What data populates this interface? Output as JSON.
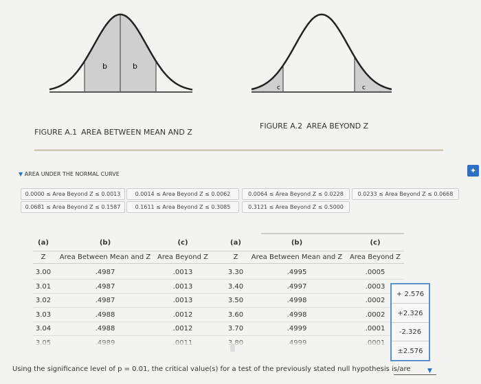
{
  "figures": [
    {
      "label": "FIGURE A.1",
      "caption": "AREA BETWEEN MEAN AND Z",
      "region_labels": [
        "b",
        "b"
      ]
    },
    {
      "label": "FIGURE A.2",
      "caption": "AREA BEYOND Z",
      "region_labels": [
        "c",
        "c"
      ]
    }
  ],
  "section": {
    "title": "AREA UNDER THE NORMAL CURVE",
    "buttons": [
      "0.0000 ≤ Area Beyond Z ≤ 0.0013",
      "0.0014 ≤ Area Beyond Z ≤ 0.0062",
      "0.0064 ≤ Area Beyond Z ≤ 0.0228",
      "0.0233 ≤ Area Beyond Z ≤ 0.0668",
      "0.0681 ≤ Area Beyond Z ≤ 0.1587",
      "0.1611 ≤ Area Beyond Z ≤ 0.3085",
      "0.3121 ≤ Area Beyond Z ≤ 0.5000"
    ]
  },
  "table": {
    "group_headers": [
      "(a)",
      "(b)",
      "(c)",
      "(a)",
      "(b)",
      "(c)"
    ],
    "headers": [
      "Z",
      "Area Between Mean and Z",
      "Area Beyond Z",
      "Z",
      "Area Between Mean and Z",
      "Area Beyond Z"
    ],
    "rows": [
      [
        "3.00",
        ".4987",
        ".0013",
        "3.30",
        ".4995",
        ".0005"
      ],
      [
        "3.01",
        ".4987",
        ".0013",
        "3.40",
        ".4997",
        ".0003"
      ],
      [
        "3.02",
        ".4987",
        ".0013",
        "3.50",
        ".4998",
        ".0002"
      ],
      [
        "3.03",
        ".4988",
        ".0012",
        "3.60",
        ".4998",
        ".0002"
      ],
      [
        "3.04",
        ".4988",
        ".0012",
        "3.70",
        ".4999",
        ".0001"
      ],
      [
        "3.05",
        ".4989",
        ".0011",
        "3.80",
        ".4999",
        ".0001"
      ]
    ]
  },
  "question": {
    "text": "Using the significance level of p = 0.01, the critical value(s) for a test of the previously stated null hypothesis is/are",
    "options": [
      "+ 2.576",
      "+2.326",
      "-2.326",
      "±2.576"
    ]
  }
}
